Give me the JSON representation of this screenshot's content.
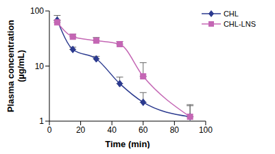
{
  "chart_data": {
    "type": "line",
    "x_label": "Time (min)",
    "y_label": "Plasma concentration (µg/mL)",
    "x": [
      5,
      15,
      30,
      45,
      60,
      90
    ],
    "series": [
      {
        "name": "CHL",
        "color": "#2b3a8f",
        "marker": "diamond",
        "values": [
          68,
          20,
          13.5,
          4.8,
          2.2,
          1.2
        ],
        "errors": [
          15,
          2,
          1.5,
          1.5,
          1.1,
          0.7
        ]
      },
      {
        "name": "CHL-LNS",
        "color": "#c466b4",
        "marker": "square",
        "values": [
          62,
          34,
          29,
          25,
          6.5,
          1.2
        ],
        "errors": [
          5,
          4,
          4,
          3,
          5,
          0.8
        ]
      }
    ],
    "xlim": [
      0,
      100
    ],
    "xticks": [
      0,
      20,
      40,
      60,
      80,
      100
    ],
    "ylim": [
      1,
      100
    ],
    "yticks": [
      1,
      10,
      100
    ],
    "log": "y",
    "grid": false,
    "legend": "top-right"
  }
}
